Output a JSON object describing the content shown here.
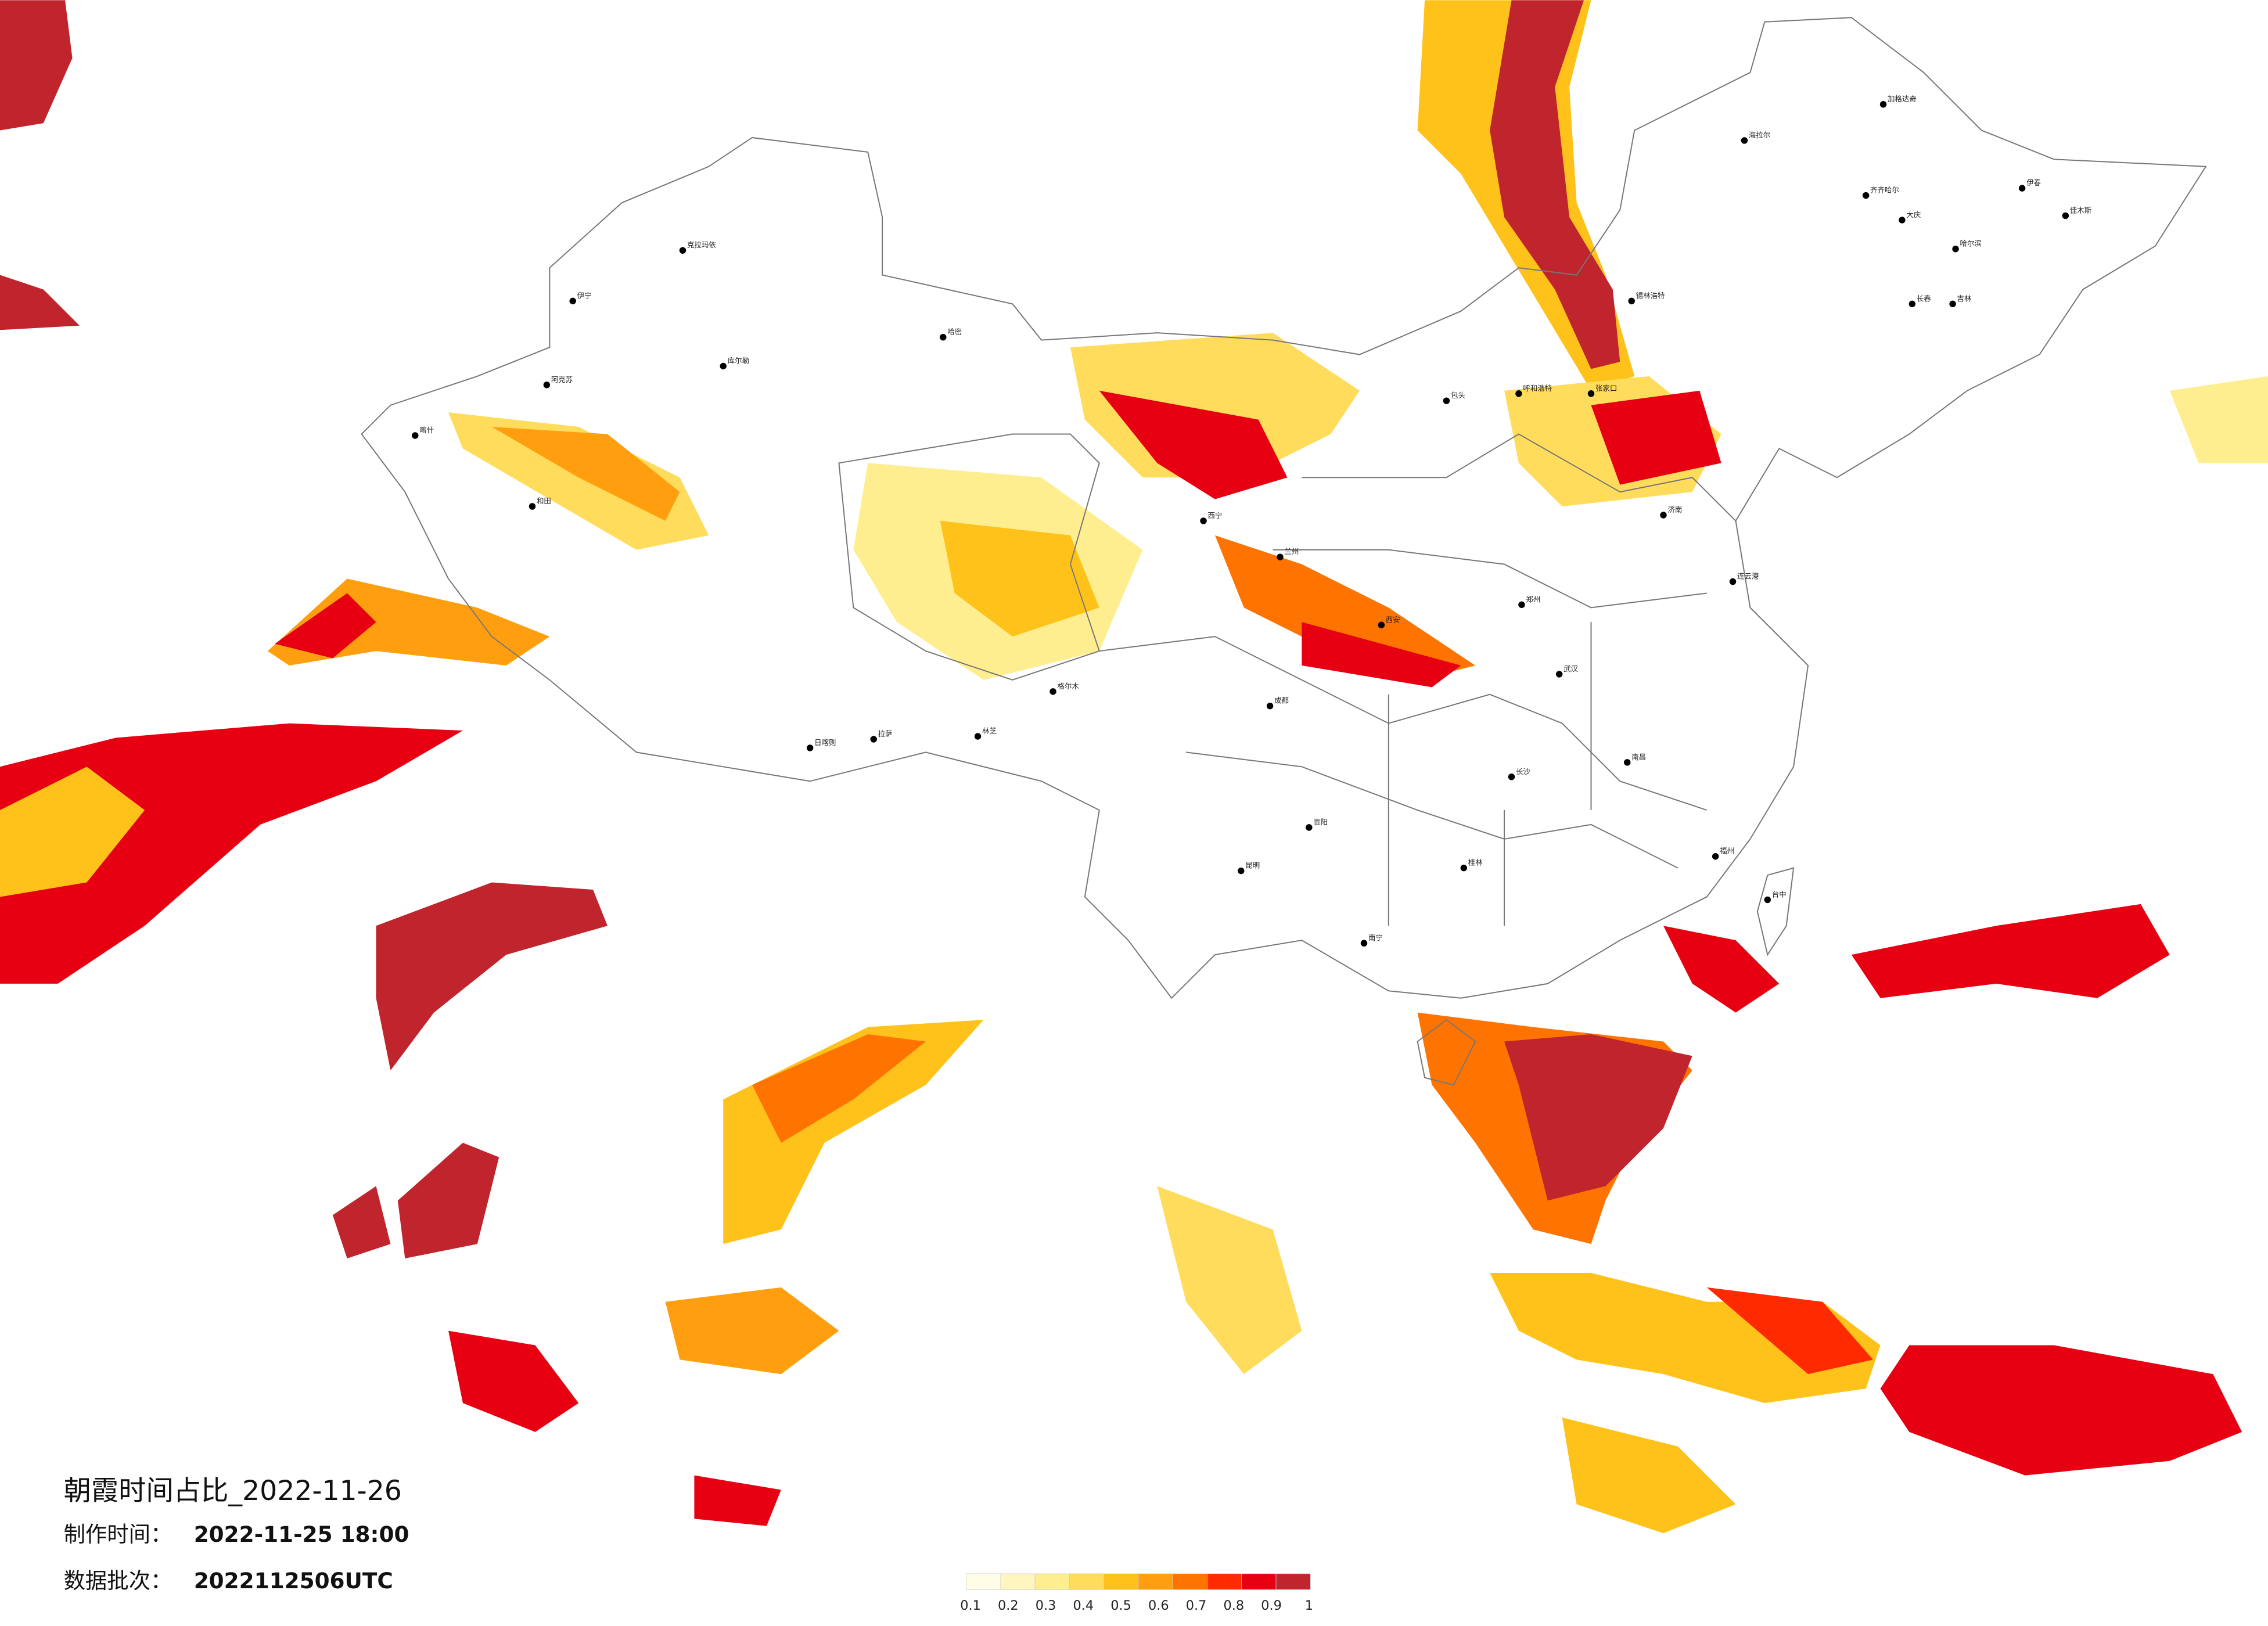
{
  "map": {
    "title": "朝霞时间占比_2022-11-26",
    "made_label": "制作时间：",
    "made_time": "2022-11-25 18:00",
    "batch_label": "数据批次：",
    "batch": "2022112506UTC",
    "legend": {
      "colors": [
        "#fffde6",
        "#fff6bf",
        "#ffee8f",
        "#ffdc5c",
        "#ffc21a",
        "#ff9f0f",
        "#ff7300",
        "#ff2a00",
        "#e60012",
        "#c0242c"
      ],
      "ticks": [
        0.1,
        0.2,
        0.3,
        0.4,
        0.5,
        0.6,
        0.7,
        0.8,
        0.9,
        1
      ]
    },
    "cities": [
      "加格达奇",
      "海拉尔",
      "齐齐哈尔",
      "大庆",
      "哈尔滨",
      "伊春",
      "佳木斯",
      "长春",
      "吉林",
      "锡林浩特",
      "呼和浩特",
      "包头",
      "克拉玛依",
      "伊宁",
      "喀什",
      "和田",
      "阿克苏",
      "库尔勒",
      "哈密",
      "格尔木",
      "拉萨",
      "日喀则",
      "林芝",
      "西宁",
      "兰州",
      "西安",
      "郑州",
      "济南",
      "武汉",
      "长沙",
      "南昌",
      "福州",
      "台中",
      "贵阳",
      "昆明",
      "南宁",
      "桂林",
      "成都",
      "张家口",
      "连云港"
    ]
  }
}
